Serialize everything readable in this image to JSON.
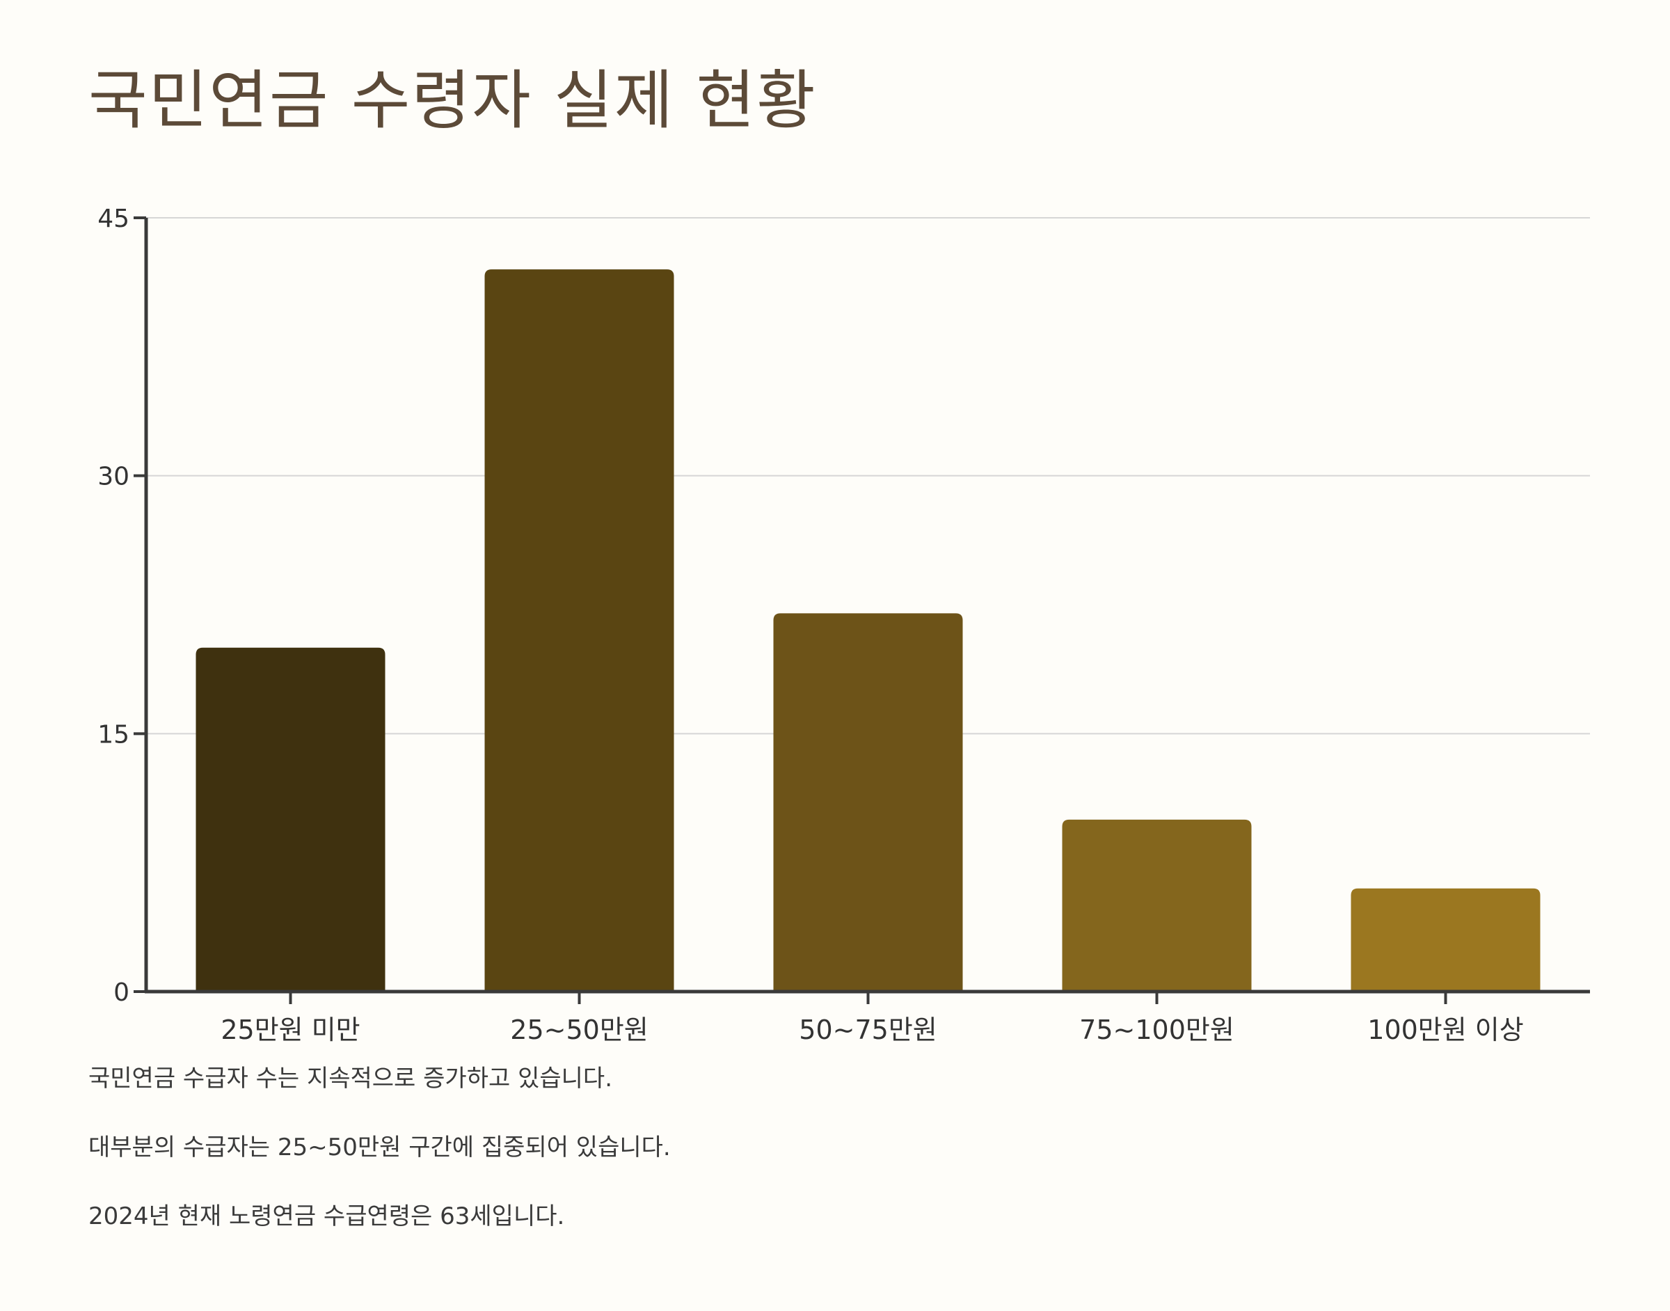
{
  "page": {
    "title": "국민연금 수령자 실제 현황",
    "notes": [
      "국민연금 수급자 수는 지속적으로 증가하고 있습니다.",
      "대부분의 수급자는 25~50만원 구간에 집중되어 있습니다.",
      "2024년 현재 노령연금 수급연령은 63세입니다."
    ]
  },
  "chart_data": {
    "type": "bar",
    "title": "국민연금 수령자 실제 현황",
    "xlabel": "",
    "ylabel": "",
    "categories": [
      "25만원 미만",
      "25~50만원",
      "50~75만원",
      "75~100만원",
      "100만원 이상"
    ],
    "values": [
      20,
      42,
      22,
      10,
      6
    ],
    "ylim": [
      0,
      45
    ],
    "yticks": [
      0,
      15,
      30,
      45
    ],
    "grid": true,
    "legend": "none",
    "colors": [
      "#3f310f",
      "#5a4512",
      "#6d5318",
      "#84661d",
      "#9b7720"
    ],
    "axis_color": "#3a3a3a",
    "grid_color": "#d6d6d6"
  }
}
